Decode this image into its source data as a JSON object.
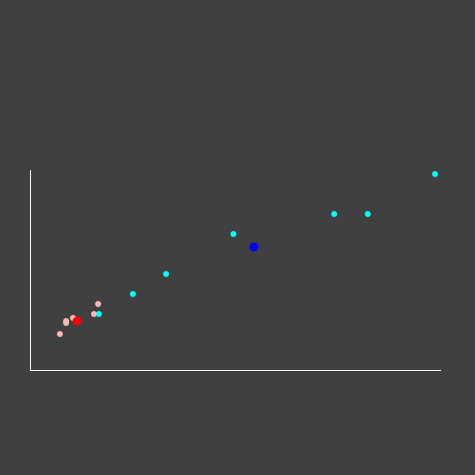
{
  "chart_data": {
    "type": "scatter",
    "title": "",
    "xlabel": "",
    "ylabel": "",
    "xlim": [
      0,
      100
    ],
    "ylim": [
      0,
      100
    ],
    "grid": false,
    "series": [
      {
        "color": "#ffb6b6",
        "point_size": "small",
        "points": [
          {
            "x": 7.3,
            "y": 18.0
          },
          {
            "x": 8.8,
            "y": 23.5
          },
          {
            "x": 8.8,
            "y": 24.5
          },
          {
            "x": 10.5,
            "y": 26.0
          },
          {
            "x": 15.6,
            "y": 28.0
          },
          {
            "x": 16.6,
            "y": 33.0
          }
        ]
      },
      {
        "color": "#00ffff",
        "point_size": "small",
        "points": [
          {
            "x": 16.8,
            "y": 28.0
          },
          {
            "x": 25.1,
            "y": 38.0
          },
          {
            "x": 33.2,
            "y": 48.0
          },
          {
            "x": 49.6,
            "y": 68.0
          },
          {
            "x": 74.2,
            "y": 78.0
          },
          {
            "x": 82.4,
            "y": 78.0
          },
          {
            "x": 98.8,
            "y": 98.0
          }
        ]
      },
      {
        "color": "#ff0000",
        "point_size": "large",
        "points": [
          {
            "x": 11.5,
            "y": 24.5
          }
        ]
      },
      {
        "color": "#0000ff",
        "point_size": "large",
        "points": [
          {
            "x": 54.6,
            "y": 61.5
          }
        ]
      }
    ]
  }
}
